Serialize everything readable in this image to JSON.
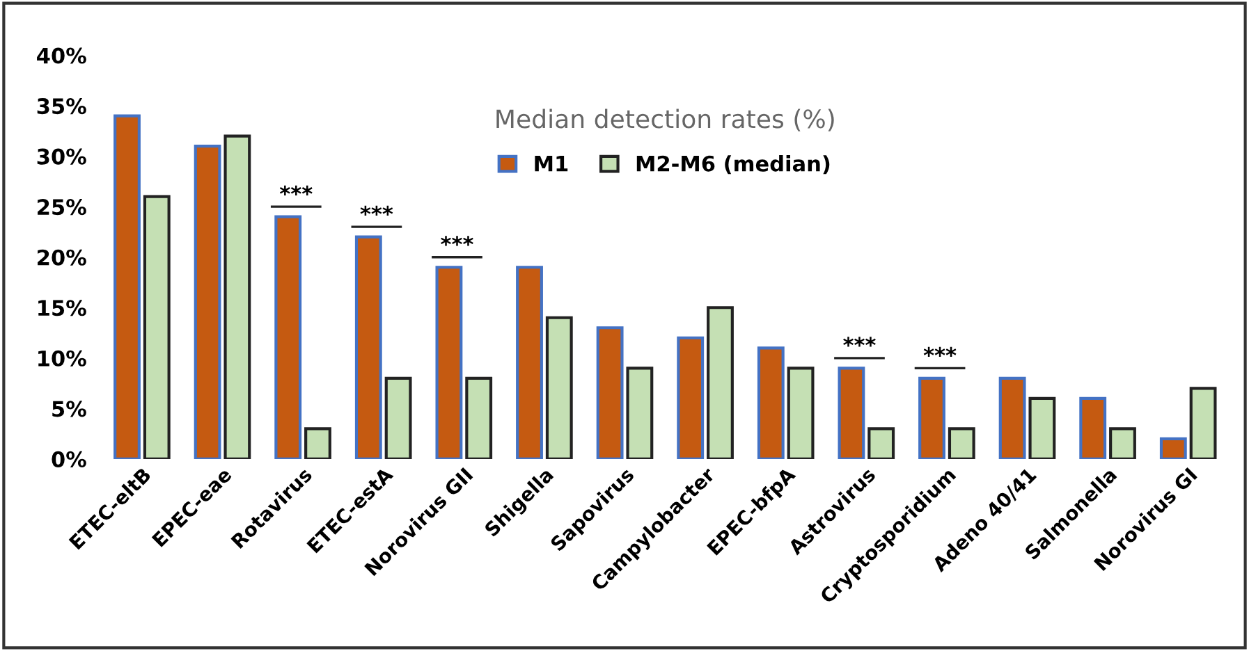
{
  "chart_data": {
    "type": "bar",
    "title": "Median detection rates (%)",
    "categories": [
      "ETEC-eltB",
      "EPEC-eae",
      "Rotavirus",
      "ETEC-estA",
      "Norovirus GII",
      "Shigella",
      "Sapovirus",
      "Campylobacter",
      "EPEC-bfpA",
      "Astrovirus",
      "Cryptosporidium",
      "Adeno 40/41",
      "Salmonella",
      "Norovirus GI"
    ],
    "series": [
      {
        "name": "M1",
        "color": "#c55a11",
        "values": [
          34,
          31,
          24,
          22,
          19,
          19,
          13,
          12,
          11,
          9,
          8,
          8,
          6,
          2
        ]
      },
      {
        "name": "M2-M6 (median)",
        "color": "#c5e0b4",
        "values": [
          26,
          32,
          3,
          8,
          8,
          14,
          9,
          15,
          9,
          3,
          3,
          6,
          3,
          7
        ]
      }
    ],
    "ylim": [
      0,
      40
    ],
    "yticks": [
      {
        "value": 0,
        "label": "0%"
      },
      {
        "value": 5,
        "label": "5%"
      },
      {
        "value": 10,
        "label": "10%"
      },
      {
        "value": 15,
        "label": "15%"
      },
      {
        "value": 20,
        "label": "20%"
      },
      {
        "value": 25,
        "label": "25%"
      },
      {
        "value": 30,
        "label": "30%"
      },
      {
        "value": 35,
        "label": "35%"
      },
      {
        "value": 40,
        "label": "40%"
      }
    ],
    "annotations": [
      {
        "text": "***",
        "x": "Rotavirus",
        "y": 24
      },
      {
        "text": "***",
        "x": "ETEC-estA",
        "y": 22
      },
      {
        "text": "***",
        "x": "Norovirus GII",
        "y": 19
      },
      {
        "text": "***",
        "x": "Astrovirus",
        "y": 9
      },
      {
        "text": "***",
        "x": "Cryptosporidium",
        "y": 8
      }
    ],
    "legend": "top",
    "grid": false
  }
}
